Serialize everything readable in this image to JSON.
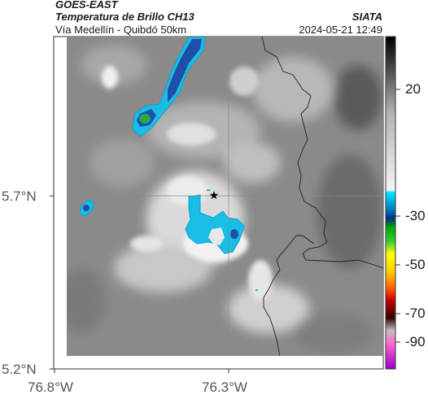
{
  "header": {
    "satellite": "GOES-EAST",
    "product": "Temperatura de Brillo CH13",
    "region": "Vía Medellín - Quibdó 50km",
    "org": "SIATA",
    "datetime": "2024-05-21 12:49"
  },
  "axes": {
    "lat_labels": [
      "5.7°N",
      "5.2°N"
    ],
    "lon_labels": [
      "76.8°W",
      "76.3°W"
    ]
  },
  "colorbar": {
    "tick_labels": [
      "20",
      "-30",
      "-50",
      "-70",
      "-90"
    ],
    "stops": [
      {
        "value": 40,
        "color": "#000000"
      },
      {
        "value": 30,
        "color": "#3a3a3a"
      },
      {
        "value": 20,
        "color": "#7a7a7a"
      },
      {
        "value": 10,
        "color": "#b4b4b4"
      },
      {
        "value": -20,
        "color": "#f4f4f4"
      },
      {
        "value": -21,
        "color": "#00e5ff"
      },
      {
        "value": -27,
        "color": "#0088cc"
      },
      {
        "value": -31,
        "color": "#002a88"
      },
      {
        "value": -35,
        "color": "#00b000"
      },
      {
        "value": -40,
        "color": "#33cc33"
      },
      {
        "value": -45,
        "color": "#ffff00"
      },
      {
        "value": -52,
        "color": "#ffcc00"
      },
      {
        "value": -58,
        "color": "#ff6600"
      },
      {
        "value": -63,
        "color": "#cc0000"
      },
      {
        "value": -70,
        "color": "#330000"
      },
      {
        "value": -75,
        "color": "#bfbfbf"
      },
      {
        "value": -80,
        "color": "#ff66cc"
      },
      {
        "value": -90,
        "color": "#9900cc"
      }
    ]
  },
  "map": {
    "marker": "star-icon",
    "colors": {
      "cold_cloud": "#19bde6",
      "cold_cloud_edge": "#0aa0d0",
      "deep_cloud": "#1f4fa8",
      "core": "#2aa84a",
      "border_line": "#222222",
      "grid": "#888888"
    }
  }
}
